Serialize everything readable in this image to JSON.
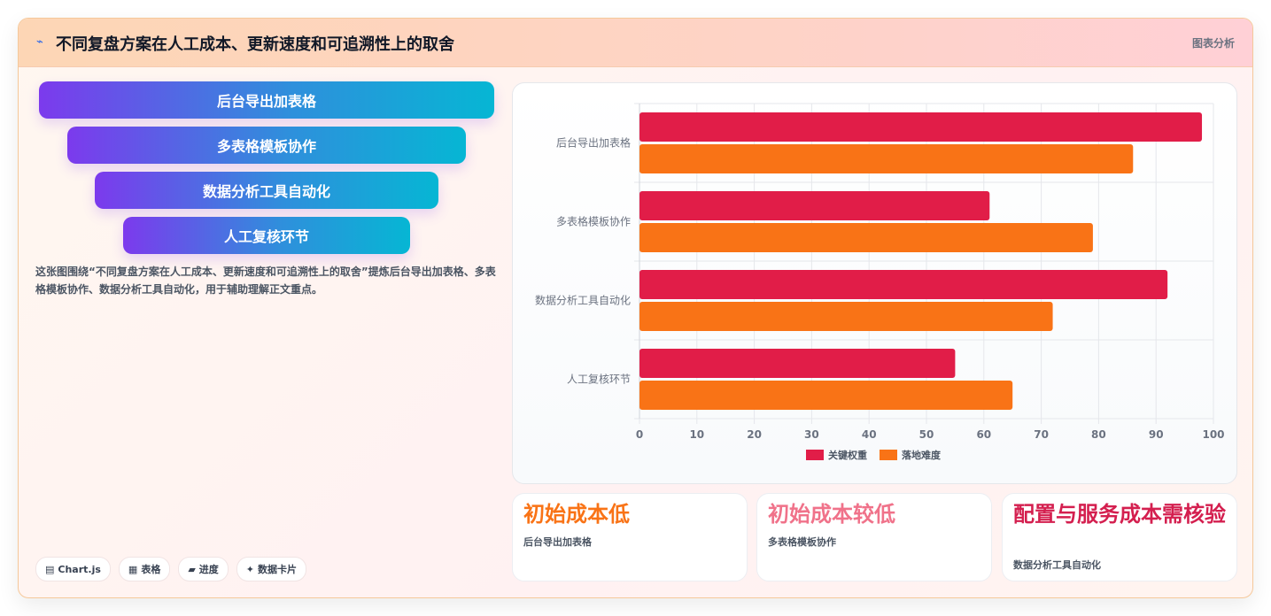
{
  "header": {
    "icon": "chart-line-icon",
    "title": "不同复盘方案在人工成本、更新速度和可追溯性上的取舍",
    "tag": "图表分析"
  },
  "funnel": {
    "items": [
      "后台导出加表格",
      "多表格模板协作",
      "数据分析工具自动化",
      "人工复核环节"
    ]
  },
  "description": "这张图围绕“不同复盘方案在人工成本、更新速度和可追溯性上的取舍”提炼后台导出加表格、多表格模板协作、数据分析工具自动化，用于辅助理解正文重点。",
  "chips": [
    {
      "icon": "▤",
      "label": "Chart.js"
    },
    {
      "icon": "▦",
      "label": "表格"
    },
    {
      "icon": "▰",
      "label": "进度"
    },
    {
      "icon": "✦",
      "label": "数据卡片"
    }
  ],
  "stat_cards": [
    {
      "value": "初始成本低",
      "label": "后台导出加表格",
      "color": "#f97316"
    },
    {
      "value": "初始成本较低",
      "label": "多表格模板协作",
      "color": "#f0728a"
    },
    {
      "value": "配置与服务成本需核验",
      "label": "数据分析工具自动化",
      "color": "#d41f4f"
    }
  ],
  "chart_data": {
    "type": "bar",
    "orientation": "horizontal",
    "categories": [
      "后台导出加表格",
      "多表格模板协作",
      "数据分析工具自动化",
      "人工复核环节"
    ],
    "series": [
      {
        "name": "关键权重",
        "values": [
          98,
          61,
          92,
          55
        ],
        "color": "#e11d48"
      },
      {
        "name": "落地难度",
        "values": [
          86,
          79,
          72,
          65
        ],
        "color": "#f97316"
      }
    ],
    "xlim": [
      0,
      100
    ],
    "xticks": [
      0,
      10,
      20,
      30,
      40,
      50,
      60,
      70,
      80,
      90,
      100
    ],
    "grid": true,
    "legend": "bottom"
  }
}
